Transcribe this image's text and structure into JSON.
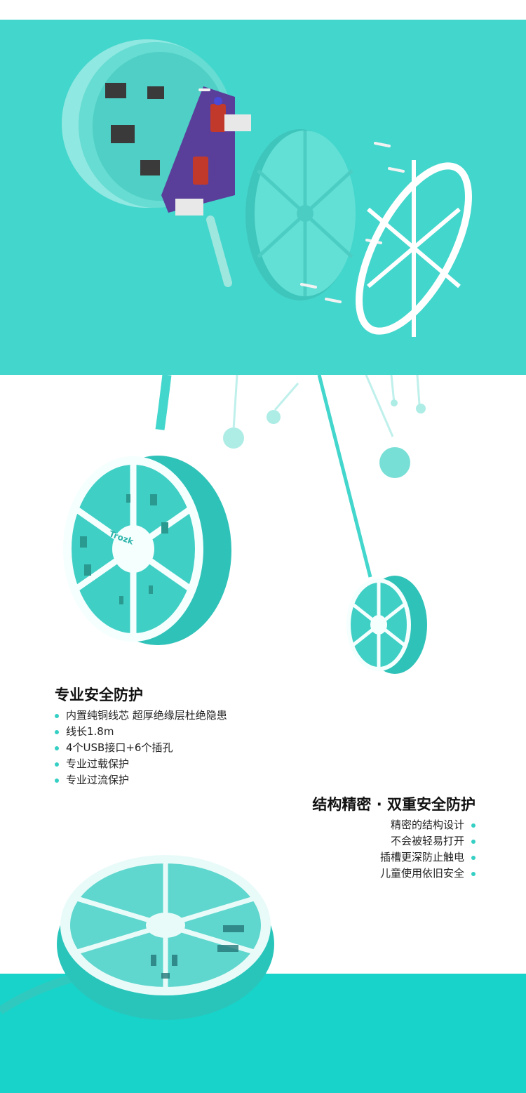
{
  "feature1": {
    "title": "专业安全防护",
    "items": [
      "内置纯铜线芯 超厚绝缘层杜绝隐患",
      "线长1.8m",
      "4个USB接口+6个插孔",
      "专业过载保护",
      "专业过流保护"
    ]
  },
  "feature2": {
    "title": "结构精密 · 双重安全防护",
    "items": [
      "精密的结构设计",
      "不会被轻易打开",
      "插槽更深防止触电",
      "儿童使用依旧安全"
    ]
  },
  "brand": "Trozk",
  "colors": {
    "teal": "#43d6cc",
    "teal_band": "#17d3c9",
    "accent_dot": "#35cfc4",
    "white": "#ffffff"
  }
}
